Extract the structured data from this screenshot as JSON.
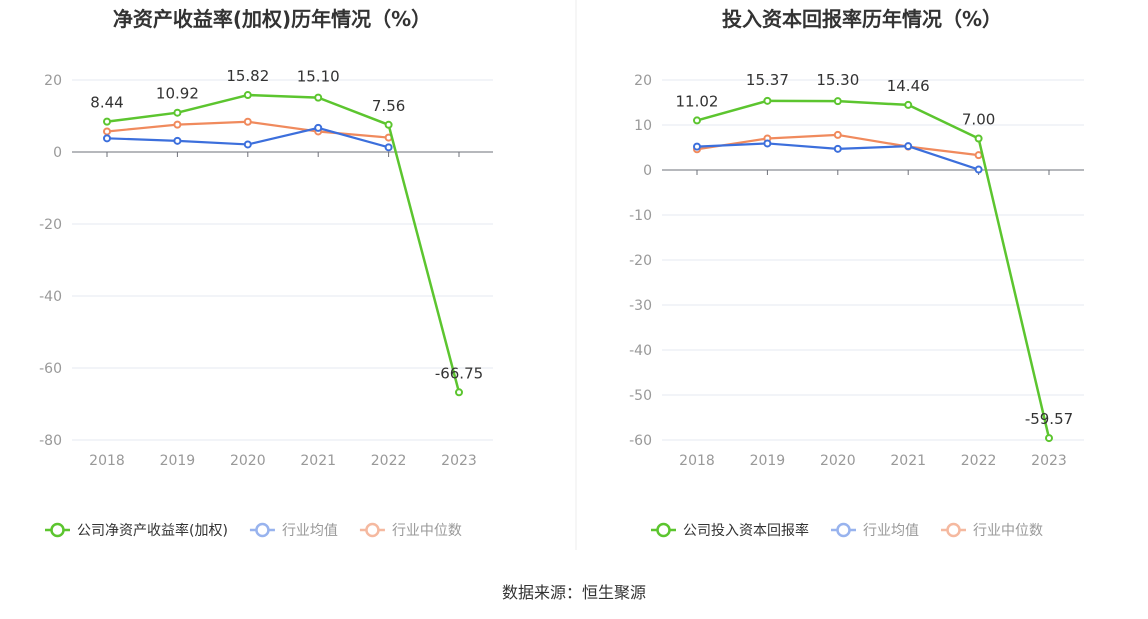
{
  "source_text": "数据来源：恒生聚源",
  "chart_data": [
    {
      "type": "line",
      "title": "净资产收益率(加权)历年情况（%）",
      "categories": [
        "2018",
        "2019",
        "2020",
        "2021",
        "2022",
        "2023"
      ],
      "ylim": [
        -80,
        20
      ],
      "yticks": [
        20,
        0,
        -20,
        -40,
        -60,
        -80
      ],
      "grid": true,
      "legend_position": "bottom",
      "series": [
        {
          "name": "公司净资产收益率(加权)",
          "color": "#5cc52f",
          "values": [
            8.44,
            10.92,
            15.82,
            15.1,
            7.56,
            -66.75
          ],
          "labels": [
            "8.44",
            "10.92",
            "15.82",
            "15.10",
            "7.56",
            "-66.75"
          ]
        },
        {
          "name": "行业均值",
          "color": "#3c6fdc",
          "values": [
            3.8,
            3.1,
            2.1,
            6.7,
            1.3,
            null
          ]
        },
        {
          "name": "行业中位数",
          "color": "#f08a5d",
          "values": [
            5.7,
            7.6,
            8.4,
            5.7,
            4.0,
            null
          ]
        }
      ]
    },
    {
      "type": "line",
      "title": "投入资本回报率历年情况（%）",
      "categories": [
        "2018",
        "2019",
        "2020",
        "2021",
        "2022",
        "2023"
      ],
      "ylim": [
        -60,
        20
      ],
      "yticks": [
        20,
        10,
        0,
        -10,
        -20,
        -30,
        -40,
        -50,
        -60
      ],
      "grid": true,
      "legend_position": "bottom",
      "series": [
        {
          "name": "公司投入资本回报率",
          "color": "#5cc52f",
          "values": [
            11.02,
            15.37,
            15.3,
            14.46,
            7.0,
            -59.57
          ],
          "labels": [
            "11.02",
            "15.37",
            "15.30",
            "14.46",
            "7.00",
            "-59.57"
          ]
        },
        {
          "name": "行业均值",
          "color": "#3c6fdc",
          "values": [
            5.2,
            5.9,
            4.7,
            5.3,
            0.1,
            null
          ]
        },
        {
          "name": "行业中位数",
          "color": "#f08a5d",
          "values": [
            4.6,
            7.0,
            7.8,
            5.2,
            3.3,
            null
          ]
        }
      ]
    }
  ]
}
